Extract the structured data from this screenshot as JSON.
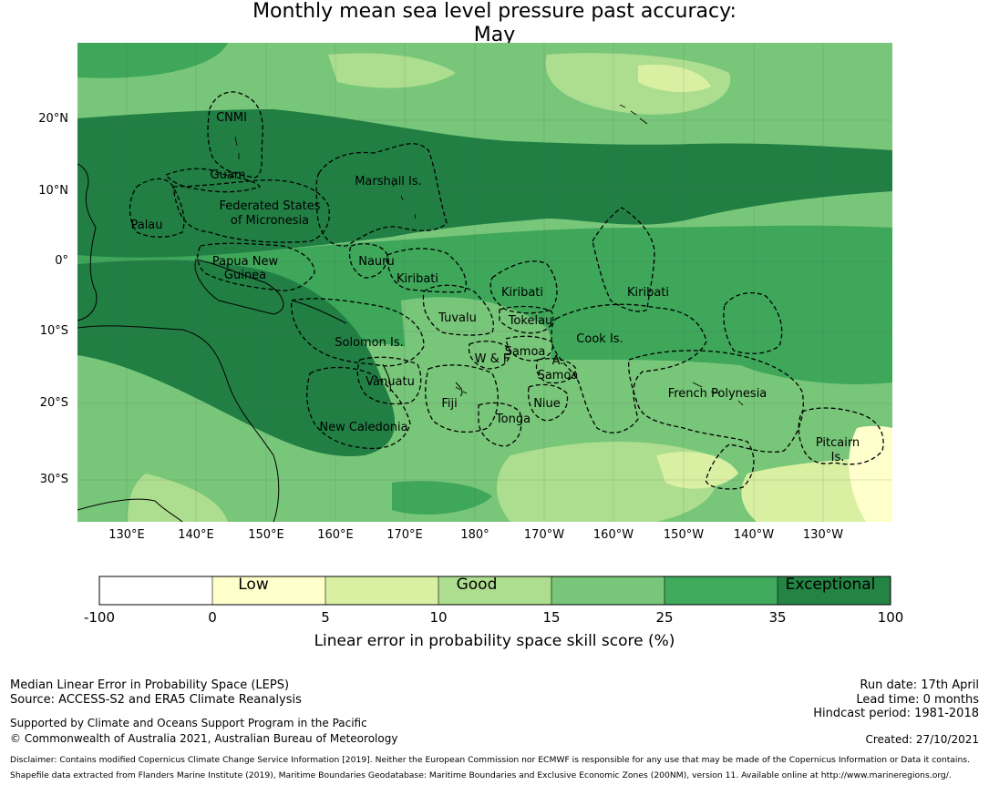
{
  "title": {
    "line1": "Monthly mean sea level pressure past accuracy:",
    "line2": "May"
  },
  "map": {
    "lat_labels": [
      "20°N",
      "10°N",
      "0°",
      "10°S",
      "20°S",
      "30°S"
    ],
    "lon_labels": [
      "130°E",
      "140°E",
      "150°E",
      "160°E",
      "170°E",
      "180°",
      "170°W",
      "160°W",
      "150°W",
      "140°W",
      "130°W"
    ],
    "regions": [
      "CNMI",
      "Guam",
      "Marshall Is.",
      "Federated States",
      "of Micronesia",
      "Palau",
      "Papua New",
      "Guinea",
      "Nauru",
      "Kiribati",
      "Kiribati",
      "Kiribati",
      "Tuvalu",
      "Tokelau",
      "Solomon Is.",
      "Samoa",
      "W & F",
      "A.",
      "Samoa",
      "Cook Is.",
      "Vanuatu",
      "Fiji",
      "Niue",
      "French Polynesia",
      "Tonga",
      "New Caledonia",
      "Pitcairn",
      "Is."
    ],
    "colors": {
      "exceptional": "#217f44",
      "high": "#3ea75a",
      "mid": "#78c679",
      "good": "#addd8e",
      "low_good": "#d9f0a3",
      "low": "#ffffcc",
      "none": "#ffffff"
    }
  },
  "colorbar": {
    "ticks": [
      "-100",
      "0",
      "5",
      "10",
      "15",
      "25",
      "35",
      "100"
    ],
    "words": [
      "Low",
      "Good",
      "Exceptional"
    ],
    "label": "Linear error in probability space skill score (%)",
    "colors": [
      "#ffffff",
      "#ffffcc",
      "#d9f0a3",
      "#addd8e",
      "#78c679",
      "#41ab5d",
      "#238443"
    ]
  },
  "footer": {
    "left1": "Median Linear Error in Probability Space (LEPS)",
    "left2": "Source: ACCESS-S2 and ERA5 Climate Reanalysis",
    "left3": "Supported by Climate and Oceans Support Program in the Pacific",
    "left4": "© Commonwealth of Australia 2021, Australian Bureau of Meteorology",
    "right1": "Run date: 17th April",
    "right2": "Lead time: 0 months",
    "right3": "Hindcast period: 1981-2018",
    "right4": "Created: 27/10/2021",
    "disclaimer": "Disclaimer: Contains modified Copernicus Climate Change Service Information [2019]. Neither the European Commission nor ECMWF is responsible for any use that may be made of the Copernicus Information or Data it contains.",
    "shapefile": "Shapefile data extracted from Flanders Marine Institute (2019), Maritime Boundaries Geodatabase: Maritime Boundaries and Exclusive Economic Zones (200NM), version 11. Available online at http://www.marineregions.org/."
  }
}
